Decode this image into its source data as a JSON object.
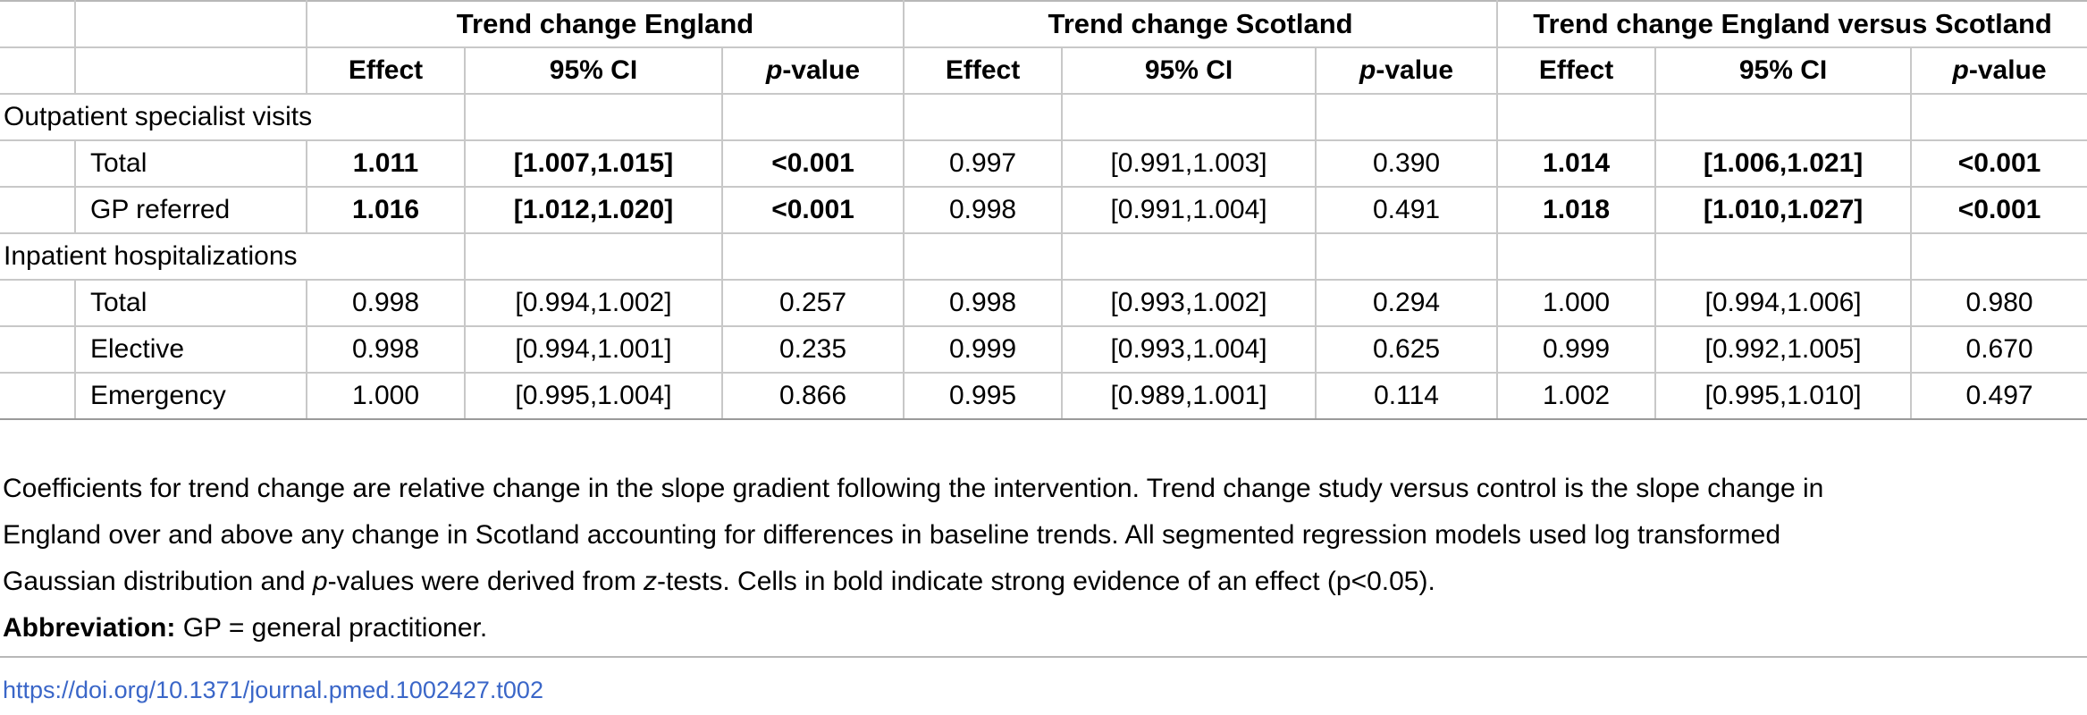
{
  "table": {
    "groups": [
      "Trend change England",
      "Trend change Scotland",
      "Trend change England versus Scotland"
    ],
    "col_effect": "Effect",
    "col_ci": "95% CI",
    "col_p_italic": "p",
    "col_p_rest": "-value",
    "sections": [
      {
        "label": "Outpatient specialist visits",
        "rows": [
          {
            "label": "Total",
            "england": {
              "effect": "1.011",
              "ci": "[1.007,1.015]",
              "p": "<0.001",
              "bold": true
            },
            "scotland": {
              "effect": "0.997",
              "ci": "[0.991,1.003]",
              "p": "0.390",
              "bold": false
            },
            "versus": {
              "effect": "1.014",
              "ci": "[1.006,1.021]",
              "p": "<0.001",
              "bold": true
            }
          },
          {
            "label": "GP referred",
            "england": {
              "effect": "1.016",
              "ci": "[1.012,1.020]",
              "p": "<0.001",
              "bold": true
            },
            "scotland": {
              "effect": "0.998",
              "ci": "[0.991,1.004]",
              "p": "0.491",
              "bold": false
            },
            "versus": {
              "effect": "1.018",
              "ci": "[1.010,1.027]",
              "p": "<0.001",
              "bold": true
            }
          }
        ]
      },
      {
        "label": "Inpatient hospitalizations",
        "rows": [
          {
            "label": "Total",
            "england": {
              "effect": "0.998",
              "ci": "[0.994,1.002]",
              "p": "0.257",
              "bold": false
            },
            "scotland": {
              "effect": "0.998",
              "ci": "[0.993,1.002]",
              "p": "0.294",
              "bold": false
            },
            "versus": {
              "effect": "1.000",
              "ci": "[0.994,1.006]",
              "p": "0.980",
              "bold": false
            }
          },
          {
            "label": "Elective",
            "england": {
              "effect": "0.998",
              "ci": "[0.994,1.001]",
              "p": "0.235",
              "bold": false
            },
            "scotland": {
              "effect": "0.999",
              "ci": "[0.993,1.004]",
              "p": "0.625",
              "bold": false
            },
            "versus": {
              "effect": "0.999",
              "ci": "[0.992,1.005]",
              "p": "0.670",
              "bold": false
            }
          },
          {
            "label": "Emergency",
            "england": {
              "effect": "1.000",
              "ci": "[0.995,1.004]",
              "p": "0.866",
              "bold": false
            },
            "scotland": {
              "effect": "0.995",
              "ci": "[0.989,1.001]",
              "p": "0.114",
              "bold": false
            },
            "versus": {
              "effect": "1.002",
              "ci": "[0.995,1.010]",
              "p": "0.497",
              "bold": false
            }
          }
        ]
      }
    ]
  },
  "notes": {
    "line1": "Coefficients for trend change are relative change in the slope gradient following the intervention. Trend change study versus control is the slope change in",
    "line2": "England over and above any change in Scotland accounting for differences in baseline trends. All segmented regression models used log transformed",
    "line3_a": "Gaussian distribution and ",
    "line3_p": "p",
    "line3_b": "-values were derived from ",
    "line3_z": "z",
    "line3_c": "-tests. Cells in bold indicate strong evidence of an effect (p<0.05).",
    "abbr_label": "Abbreviation:",
    "abbr_text": " GP = general practitioner."
  },
  "doi": "https://doi.org/10.1371/journal.pmed.1002427.t002",
  "colors": {
    "link": "#3a66c8",
    "rule": "#c8c8c8"
  }
}
